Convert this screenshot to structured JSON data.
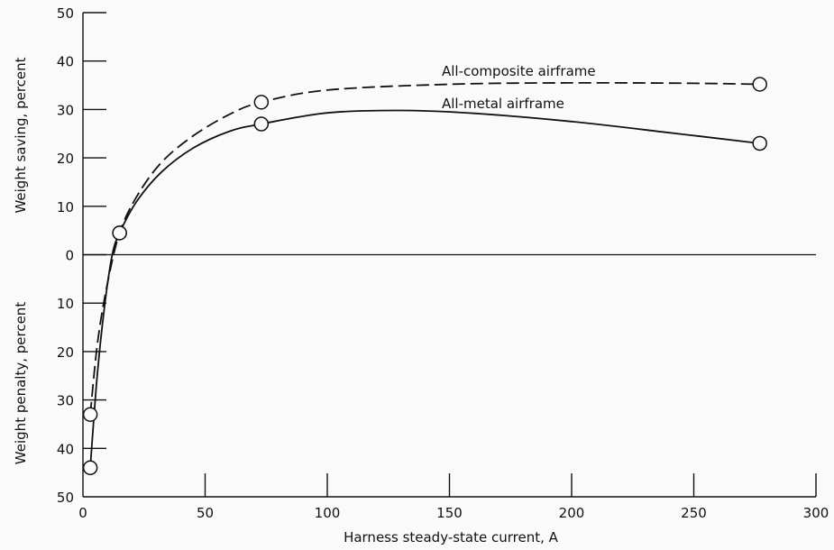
{
  "chart_data": {
    "type": "line",
    "xlabel": "Harness steady-state current, A",
    "ylabel_upper": "Weight saving, percent",
    "ylabel_lower": "Weight penalty, percent",
    "xlim": [
      0,
      300
    ],
    "ylim": [
      -50,
      50
    ],
    "x_ticks": [
      0,
      50,
      100,
      150,
      200,
      250,
      300
    ],
    "x_tick_labels": [
      "0",
      "50",
      "100",
      "150",
      "200",
      "250",
      "300"
    ],
    "y_ticks": [
      50,
      40,
      30,
      20,
      10,
      0,
      -10,
      -20,
      -30,
      -40,
      -50
    ],
    "y_tick_labels": [
      "50",
      "40",
      "30",
      "20",
      "10",
      "0",
      "10",
      "20",
      "30",
      "40",
      "50"
    ],
    "series": [
      {
        "name": "All-composite airframe",
        "line_style": "dashed",
        "curve": [
          [
            3,
            -33
          ],
          [
            6,
            -18
          ],
          [
            10,
            -6
          ],
          [
            15,
            4.5
          ],
          [
            22,
            12
          ],
          [
            32,
            19
          ],
          [
            45,
            24.5
          ],
          [
            60,
            29
          ],
          [
            73,
            31.5
          ],
          [
            100,
            34
          ],
          [
            150,
            35.2
          ],
          [
            200,
            35.5
          ],
          [
            250,
            35.4
          ],
          [
            277,
            35.2
          ]
        ],
        "markers": [
          [
            3,
            -33
          ],
          [
            15,
            4.5
          ],
          [
            73,
            31.5
          ],
          [
            277,
            35.2
          ]
        ]
      },
      {
        "name": "All-metal airframe",
        "line_style": "solid",
        "curve": [
          [
            3,
            -44
          ],
          [
            4,
            -37
          ],
          [
            6,
            -24
          ],
          [
            9,
            -10
          ],
          [
            12,
            0
          ],
          [
            15,
            4.5
          ],
          [
            22,
            11
          ],
          [
            32,
            17
          ],
          [
            45,
            22
          ],
          [
            60,
            25.5
          ],
          [
            73,
            27
          ],
          [
            100,
            29.3
          ],
          [
            130,
            29.8
          ],
          [
            160,
            29.2
          ],
          [
            200,
            27.5
          ],
          [
            240,
            25.2
          ],
          [
            277,
            23
          ]
        ],
        "markers": [
          [
            3,
            -44
          ],
          [
            15,
            4.5
          ],
          [
            73,
            27
          ],
          [
            277,
            23
          ]
        ]
      }
    ]
  }
}
